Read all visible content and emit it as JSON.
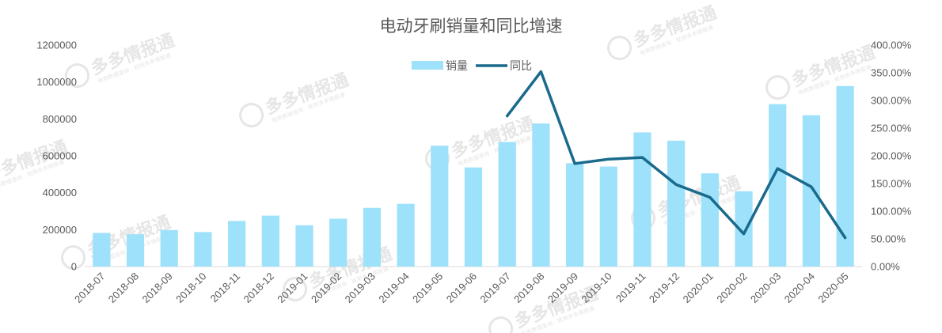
{
  "chart_data": {
    "type": "bar",
    "title": "电动牙刷销量和同比增速",
    "categories": [
      "2018-07",
      "2018-08",
      "2018-09",
      "2018-10",
      "2018-11",
      "2018-12",
      "2019-01",
      "2019-02",
      "2019-03",
      "2019-04",
      "2019-05",
      "2019-06",
      "2019-07",
      "2019-08",
      "2019-09",
      "2019-10",
      "2019-11",
      "2019-12",
      "2020-01",
      "2020-02",
      "2020-03",
      "2020-04",
      "2020-05"
    ],
    "series": [
      {
        "name": "销量",
        "type": "bar",
        "axis": "left",
        "color": "#9de1fa",
        "values": [
          182000,
          175000,
          198000,
          187000,
          247000,
          276000,
          224000,
          259000,
          318000,
          340000,
          655000,
          537000,
          675000,
          775000,
          560000,
          542000,
          727000,
          682000,
          505000,
          408000,
          880000,
          820000,
          978000
        ]
      },
      {
        "name": "同比",
        "type": "line",
        "axis": "right",
        "color": "#1a6a8c",
        "values": [
          null,
          null,
          null,
          null,
          null,
          null,
          null,
          null,
          null,
          null,
          null,
          null,
          2.72,
          3.52,
          1.86,
          1.94,
          1.97,
          1.48,
          1.25,
          0.59,
          1.77,
          1.44,
          0.52
        ]
      }
    ],
    "y_left": {
      "lim": [
        0,
        1200000
      ],
      "ticks": [
        "0",
        "200000",
        "400000",
        "600000",
        "800000",
        "1000000",
        "1200000"
      ]
    },
    "y_right": {
      "lim": [
        0,
        4.0
      ],
      "ticks": [
        "0.00%",
        "50.00%",
        "100.00%",
        "150.00%",
        "200.00%",
        "250.00%",
        "300.00%",
        "350.00%",
        "400.00%"
      ]
    },
    "legend_position": "top-center",
    "grid": false
  },
  "watermark": {
    "brand": "多多情报通",
    "tagline": "电商数据查询 · 就用多多情报通"
  }
}
